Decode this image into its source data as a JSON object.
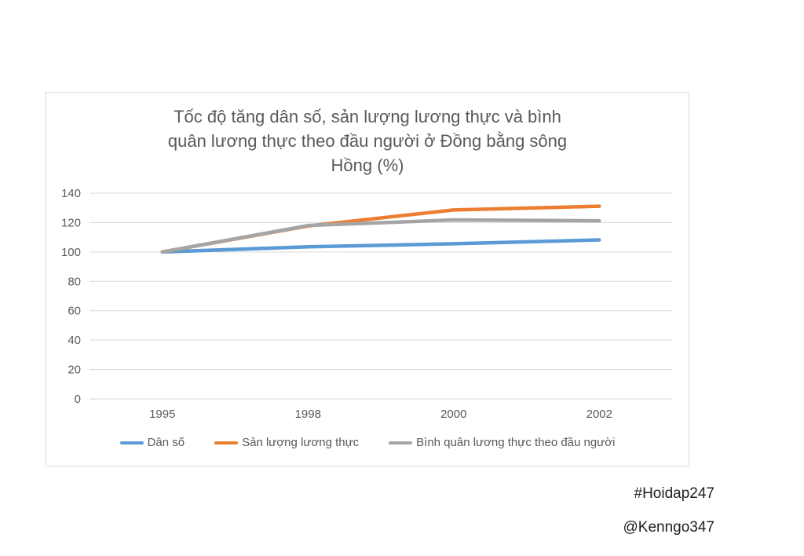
{
  "chart_data": {
    "type": "line",
    "title": "Tốc độ tăng dân số, sản lượng lương thực và bình quân lương thực theo đầu người ở Đồng bằng sông Hồng (%)",
    "title_lines": [
      "Tốc độ tăng dân số, sản lượng lương thực và bình",
      "quân lương thực theo đầu người ở Đồng bằng sông",
      "Hồng (%)"
    ],
    "xlabel": "",
    "ylabel": "",
    "categories": [
      "1995",
      "1998",
      "2000",
      "2002"
    ],
    "series": [
      {
        "name": "Dân số",
        "color": "#5B9BD5",
        "values": [
          100,
          103.5,
          105.6,
          108.2
        ]
      },
      {
        "name": "Sản lượng lương thực",
        "color": "#ED7D31",
        "values": [
          100,
          117.7,
          128.6,
          131.1
        ]
      },
      {
        "name": "Bình quân lương thực theo đầu người",
        "color": "#A5A5A5",
        "values": [
          100,
          118,
          121.8,
          121.2
        ]
      }
    ],
    "ylim": [
      0,
      140
    ],
    "yticks": [
      0,
      20,
      40,
      60,
      80,
      100,
      120,
      140
    ],
    "grid": true,
    "legend_position": "bottom",
    "colors": {
      "title_text": "#595959",
      "axis_text": "#595959",
      "gridline": "#D9D9D9",
      "chart_border": "#D9D9D9",
      "watermark_text": "#1f1f1f"
    }
  },
  "watermark": {
    "hashtag": "#Hoidap247",
    "handle": "@Kenngo347"
  }
}
